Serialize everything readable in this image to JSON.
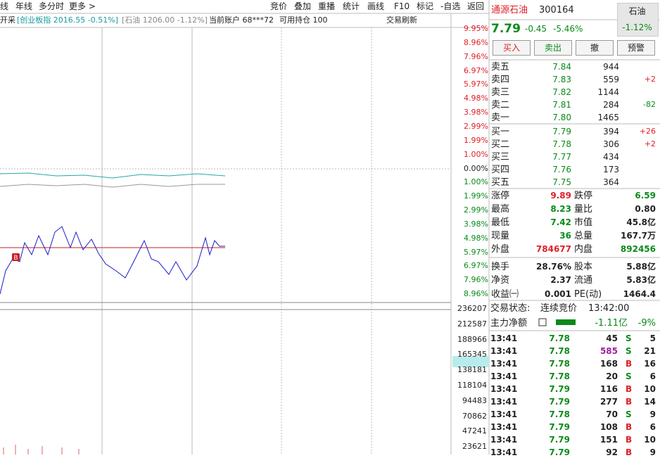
{
  "toolbar": {
    "left": [
      "线",
      "年线",
      "多分时",
      "更多 >"
    ],
    "right": [
      "竞价",
      "叠加",
      "重播",
      "统计",
      "画线",
      "F10",
      "标记",
      "-自选",
      "返回"
    ]
  },
  "info_bar": {
    "prefix": "开采",
    "index": "[创业板指 2016.55 -0.51%]",
    "sector": "[石油 1206.00 -1.12%]",
    "account": "当前账户 68***72",
    "position": "可用持仓 100",
    "refresh": "交易刷新"
  },
  "price_axis": [
    "9.95%",
    "8.96%",
    "7.96%",
    "6.97%",
    "5.97%",
    "4.98%",
    "3.98%",
    "2.99%",
    "1.99%",
    "1.00%",
    "0.00%",
    "1.00%",
    "1.99%",
    "2.99%",
    "3.98%",
    "4.98%",
    "5.97%",
    "6.97%",
    "7.96%",
    "8.96%"
  ],
  "volume_axis": [
    "236207",
    "212587",
    "188966",
    "165345",
    "138181",
    "118104",
    "94483",
    "70862",
    "47241",
    "23621"
  ],
  "quote": {
    "name": "通源石油",
    "code": "300164",
    "price": "7.79",
    "change": "-0.45",
    "change_pct": "-5.46%",
    "sector_name": "石油",
    "sector_change": "-1.12%"
  },
  "buttons": [
    "买入",
    "卖出",
    "撤",
    "预警"
  ],
  "asks": [
    {
      "label": "卖五",
      "price": "7.84",
      "volume": "944"
    },
    {
      "label": "卖四",
      "price": "7.83",
      "volume": "559",
      "delta": "+2"
    },
    {
      "label": "卖三",
      "price": "7.82",
      "volume": "1144"
    },
    {
      "label": "卖二",
      "price": "7.81",
      "volume": "284",
      "delta": "-82"
    },
    {
      "label": "卖一",
      "price": "7.80",
      "volume": "1465"
    }
  ],
  "bids": [
    {
      "label": "买一",
      "price": "7.79",
      "volume": "394",
      "delta": "+26"
    },
    {
      "label": "买二",
      "price": "7.78",
      "volume": "306",
      "delta": "+2"
    },
    {
      "label": "买三",
      "price": "7.77",
      "volume": "434"
    },
    {
      "label": "买四",
      "price": "7.76",
      "volume": "173"
    },
    {
      "label": "买五",
      "price": "7.75",
      "volume": "364"
    }
  ],
  "stats": [
    [
      {
        "label": "涨停",
        "value": "9.89",
        "color": "up"
      },
      {
        "label": "跌停",
        "value": "6.59",
        "color": "down"
      }
    ],
    [
      {
        "label": "最高",
        "value": "8.23",
        "color": "down"
      },
      {
        "label": "量比",
        "value": "0.80"
      }
    ],
    [
      {
        "label": "最低",
        "value": "7.42",
        "color": "down"
      },
      {
        "label": "市值",
        "value": "45.8亿"
      }
    ],
    [
      {
        "label": "现量",
        "value": "36",
        "color": "down"
      },
      {
        "label": "总量",
        "value": "167.7万"
      }
    ],
    [
      {
        "label": "外盘",
        "value": "784677",
        "color": "up"
      },
      {
        "label": "内盘",
        "value": "892456",
        "color": "down"
      }
    ],
    [
      {
        "label": "换手",
        "value": "28.76%"
      },
      {
        "label": "股本",
        "value": "5.88亿"
      }
    ],
    [
      {
        "label": "净资",
        "value": "2.37"
      },
      {
        "label": "流通",
        "value": "5.83亿"
      }
    ],
    [
      {
        "label": "收益㈠",
        "value": "0.001"
      },
      {
        "label": "PE(动)",
        "value": "1464.4"
      }
    ]
  ],
  "status": {
    "label": "交易状态:",
    "value": "连续竞价",
    "time": "13:42:00"
  },
  "main_force": {
    "label": "主力净额",
    "value": "-1.11亿",
    "pct": "-9%"
  },
  "ticks": [
    {
      "time": "13:41",
      "price": "7.78",
      "volume": "45",
      "side": "S",
      "count": "5"
    },
    {
      "time": "13:41",
      "price": "7.78",
      "volume": "585",
      "side": "S",
      "count": "21"
    },
    {
      "time": "13:41",
      "price": "7.78",
      "volume": "168",
      "side": "B",
      "count": "16"
    },
    {
      "time": "13:41",
      "price": "7.78",
      "volume": "20",
      "side": "S",
      "count": "6"
    },
    {
      "time": "13:41",
      "price": "7.79",
      "volume": "116",
      "side": "B",
      "count": "10"
    },
    {
      "time": "13:41",
      "price": "7.79",
      "volume": "277",
      "side": "B",
      "count": "14"
    },
    {
      "time": "13:41",
      "price": "7.78",
      "volume": "70",
      "side": "S",
      "count": "9"
    },
    {
      "time": "13:41",
      "price": "7.79",
      "volume": "108",
      "side": "B",
      "count": "6"
    },
    {
      "time": "13:41",
      "price": "7.79",
      "volume": "151",
      "side": "B",
      "count": "10"
    },
    {
      "time": "13:41",
      "price": "7.79",
      "volume": "92",
      "side": "B",
      "count": "9"
    }
  ]
}
